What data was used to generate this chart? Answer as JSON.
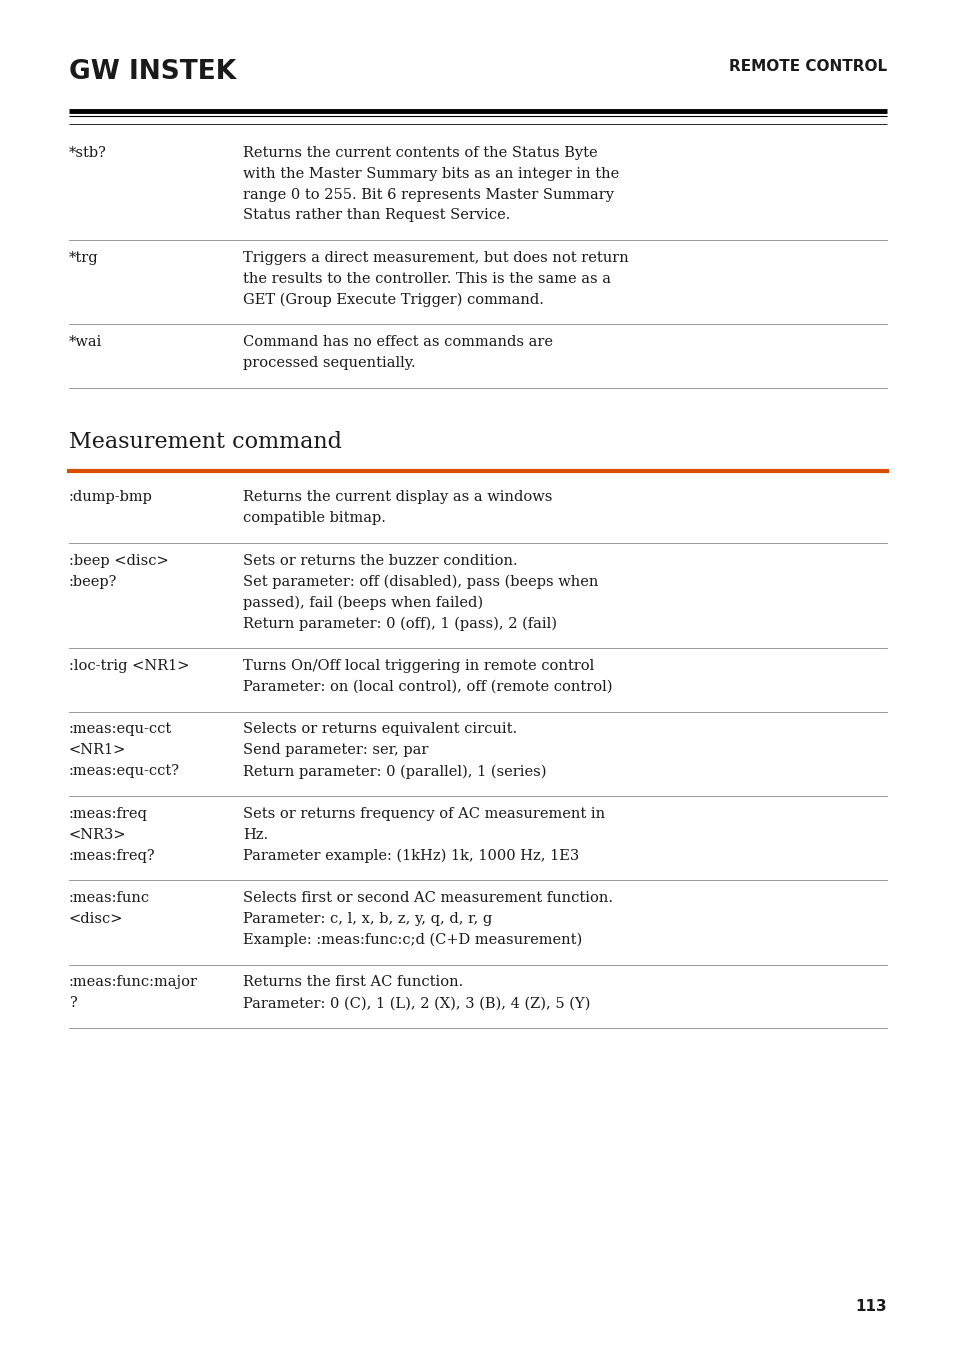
{
  "page_bg": "#ffffff",
  "text_color": "#1a1a1a",
  "header_logo": "GW INSTEK",
  "header_right": "REMOTE CONTROL",
  "header_line_color": "#000000",
  "orange_line_color": "#d94f00",
  "section_title": "Measurement command",
  "page_number": "113",
  "table_line_color": "#888888",
  "lm": 0.072,
  "rm": 0.93,
  "col2": 0.255,
  "top_rows": [
    {
      "cmd": "*stb?",
      "desc_lines": [
        "Returns the current contents of the Status Byte",
        "with the Master Summary bits as an integer in the",
        "range 0 to 255. Bit 6 represents Master Summary",
        "Status rather than Request Service."
      ]
    },
    {
      "cmd": "*trg",
      "desc_lines": [
        "Triggers a direct measurement, but does not return",
        "the results to the controller. This is the same as a",
        "GET (Group Execute Trigger) command."
      ]
    },
    {
      "cmd": "*wai",
      "desc_lines": [
        "Command has no effect as commands are",
        "processed sequentially."
      ]
    }
  ],
  "bottom_rows": [
    {
      "cmd_lines": [
        ":dump-bmp"
      ],
      "desc_lines": [
        "Returns the current display as a windows",
        "compatible bitmap."
      ]
    },
    {
      "cmd_lines": [
        ":beep <disc>",
        ":beep?"
      ],
      "desc_lines": [
        "Sets or returns the buzzer condition.",
        "Set parameter: off (disabled), pass (beeps when",
        "passed), fail (beeps when failed)",
        "Return parameter: 0 (off), 1 (pass), 2 (fail)"
      ]
    },
    {
      "cmd_lines": [
        ":loc-trig <NR1>"
      ],
      "desc_lines": [
        "Turns On/Off local triggering in remote control",
        "Parameter: on (local control), off (remote control)"
      ]
    },
    {
      "cmd_lines": [
        ":meas:equ-cct",
        "<NR1>",
        ":meas:equ-cct?"
      ],
      "desc_lines": [
        "Selects or returns equivalent circuit.",
        "Send parameter: ser, par",
        "Return parameter: 0 (parallel), 1 (series)"
      ]
    },
    {
      "cmd_lines": [
        ":meas:freq",
        "<NR3>",
        ":meas:freq?"
      ],
      "desc_lines": [
        "Sets or returns frequency of AC measurement in",
        "Hz.",
        "Parameter example: (1kHz) 1k, 1000 Hz, 1E3"
      ]
    },
    {
      "cmd_lines": [
        ":meas:func",
        "<disc>"
      ],
      "desc_lines": [
        "Selects first or second AC measurement function.",
        "Parameter: c, l, x, b, z, y, q, d, r, g",
        "Example: :meas:func:c;d (C+D measurement)"
      ]
    },
    {
      "cmd_lines": [
        ":meas:func:major",
        "?"
      ],
      "desc_lines": [
        "Returns the first AC function.",
        "Parameter: 0 (C), 1 (L), 2 (X), 3 (B), 4 (Z), 5 (Y)"
      ]
    }
  ]
}
